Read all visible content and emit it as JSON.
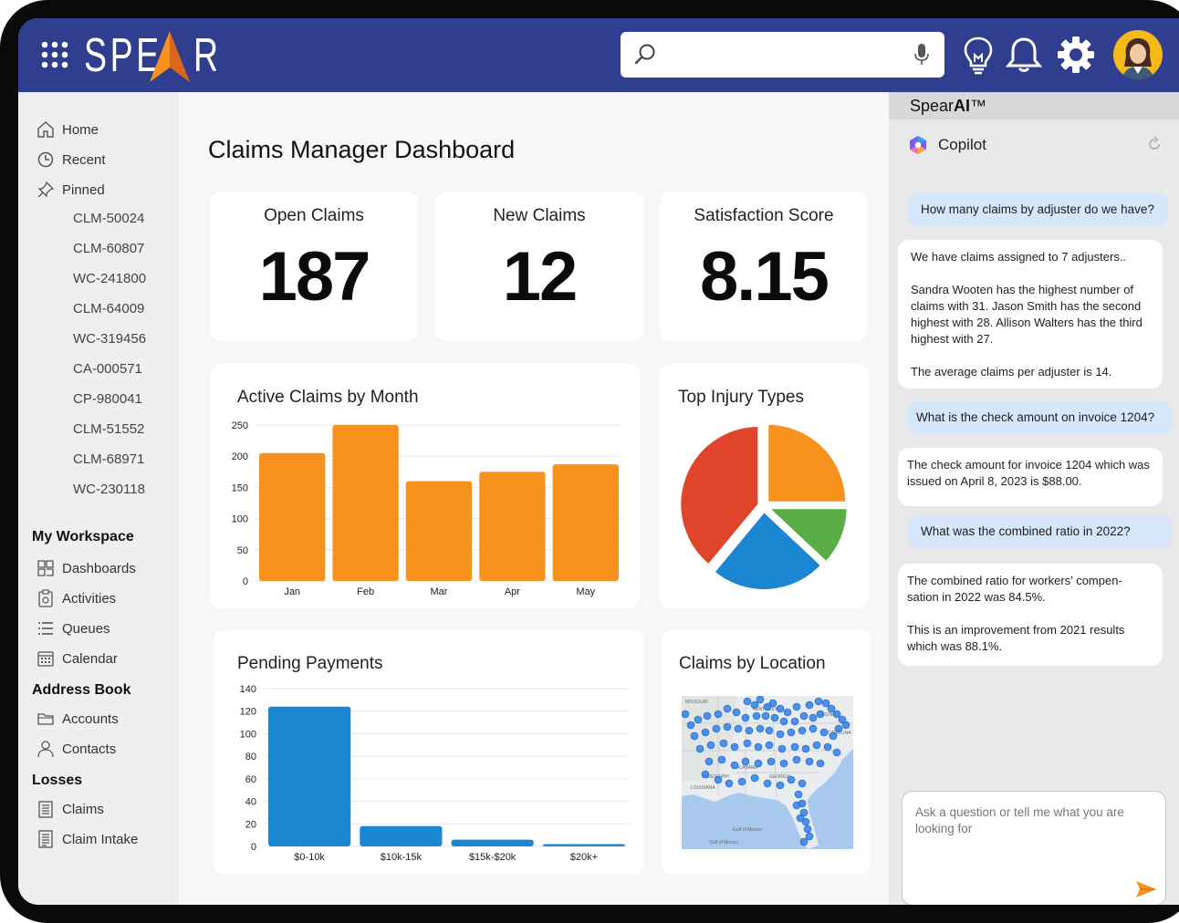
{
  "brand": {
    "name": "SPE",
    "name_end": "R"
  },
  "search": {
    "placeholder": ""
  },
  "icons": {
    "apps": "grid-icon",
    "search": "search-icon",
    "mic": "microphone-icon",
    "idea": "lightbulb-icon",
    "notifications": "bell-icon",
    "settings": "gear-icon",
    "user": "avatar"
  },
  "sidebar": {
    "top_items": [
      {
        "label": "Home",
        "icon": "home-icon"
      },
      {
        "label": "Recent",
        "icon": "clock-icon"
      },
      {
        "label": "Pinned",
        "icon": "pin-icon"
      }
    ],
    "pinned": [
      "CLM-50024",
      "CLM-60807",
      "WC-241800",
      "CLM-64009",
      "WC-319456",
      "CA-000571",
      "CP-980041",
      "CLM-51552",
      "CLM-68971",
      "WC-230118"
    ],
    "workspace_title": "My Workspace",
    "workspace": [
      {
        "label": "Dashboards",
        "icon": "dashboard-icon"
      },
      {
        "label": "Activities",
        "icon": "clipboard-icon"
      },
      {
        "label": "Queues",
        "icon": "list-icon"
      },
      {
        "label": "Calendar",
        "icon": "calendar-icon"
      }
    ],
    "address_title": "Address Book",
    "address": [
      {
        "label": "Accounts",
        "icon": "folder-icon"
      },
      {
        "label": "Contacts",
        "icon": "person-icon"
      }
    ],
    "losses_title": "Losses",
    "losses": [
      {
        "label": "Claims",
        "icon": "document-icon"
      },
      {
        "label": "Claim Intake",
        "icon": "form-icon"
      }
    ]
  },
  "main": {
    "title": "Claims Manager Dashboard",
    "kpis": [
      {
        "label": "Open Claims",
        "value": "187"
      },
      {
        "label": "New Claims",
        "value": "12"
      },
      {
        "label": "Satisfaction Score",
        "value": "8.15"
      }
    ],
    "active_claims_title": "Active Claims by Month",
    "injury_title": "Top Injury Types",
    "payments_title": "Pending Payments",
    "location_title": "Claims by Location",
    "map_labels": [
      "MISSOURI",
      "KENTUCKY",
      "VIRGINIA",
      "CAROLINA",
      "ALABAMA",
      "GEORGIA",
      "MISSISSIPPI",
      "LOUISIANA",
      "Gulf of Mexico",
      "Gulf of Mexico"
    ]
  },
  "chart_data": [
    {
      "type": "bar",
      "title": "Active Claims by Month",
      "categories": [
        "Jan",
        "Feb",
        "Mar",
        "Apr",
        "May"
      ],
      "values": [
        205,
        250,
        160,
        175,
        187
      ],
      "ylim": [
        0,
        250
      ],
      "yticks": [
        0,
        50,
        100,
        150,
        200,
        250
      ],
      "color": "#f7921e",
      "grid": true
    },
    {
      "type": "pie",
      "title": "Top Injury Types",
      "values": [
        25,
        12,
        24,
        39
      ],
      "colors": [
        "#f7921e",
        "#5aac44",
        "#1b87d3",
        "#e0452b"
      ]
    },
    {
      "type": "bar",
      "title": "Pending Payments",
      "categories": [
        "$0-10k",
        "$10k-15k",
        "$15k-$20k",
        "$20k+"
      ],
      "values": [
        124,
        18,
        6,
        2
      ],
      "ylim": [
        0,
        140
      ],
      "yticks": [
        0,
        20,
        40,
        60,
        80,
        100,
        120,
        140
      ],
      "color": "#1b87d3",
      "grid": true
    }
  ],
  "ai": {
    "brand": "Spear",
    "brand_bold": "AI",
    "brand_tm": "™",
    "copilot_label": "Copilot",
    "messages": [
      {
        "role": "user",
        "text": "How many claims by adjuster do we have?"
      },
      {
        "role": "assistant",
        "paragraphs": [
          "We have claims assigned to 7 adjusters..",
          "Sandra Wooten has the highest number of claims with 31. Jason Smith has the second highest with 28. Allison Walters has the third highest with 27.",
          "The average claims per adjuster is 14."
        ]
      },
      {
        "role": "user",
        "text": "What is the check amount on invoice 1204?"
      },
      {
        "role": "assistant",
        "paragraphs": [
          "The check amount for invoice 1204 which was issued on April 8, 2023 is $88.00."
        ]
      },
      {
        "role": "user",
        "text": "What was the combined ratio in 2022?"
      },
      {
        "role": "assistant",
        "paragraphs": [
          "The combined ratio for workers’ compen-sation in 2022 was 84.5%.",
          "This is an improvement from 2021 results which was 88.1%."
        ]
      }
    ],
    "input_placeholder": "Ask a question or tell me what you are looking for"
  },
  "colors": {
    "topbar": "#2f3e8f",
    "accent_orange": "#f7921e",
    "accent_blue": "#1b87d3",
    "bubble_user": "#d6e6fb"
  }
}
